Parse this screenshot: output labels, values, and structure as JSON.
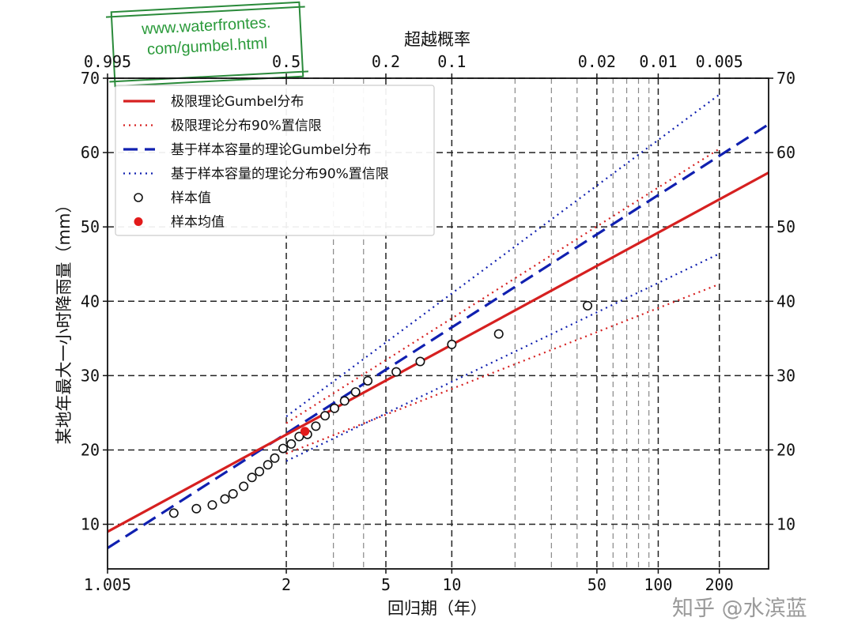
{
  "watermark": {
    "line1": "www.waterfrontes.",
    "line2": "com/gumbel.html"
  },
  "credit": "知乎 @水滨蓝",
  "colors": {
    "gumbel_theory": "#d62020",
    "sample_theory": "#1020b0",
    "grid": "#222222",
    "minor_grid": "#888888",
    "sample_point_edge": "#111111",
    "mean_point": "#e21a1a"
  },
  "chart_data": {
    "type": "scatter",
    "xscale": "gumbel",
    "xlabel": "回归期（年）",
    "ylabel": "某地年最大一小时降雨量（mm）",
    "top_xlabel": "超越概率",
    "ylim": [
      4,
      70
    ],
    "xlim": [
      1.005,
      350
    ],
    "grid": true,
    "legend_position": "top-left",
    "x_ticks": [
      {
        "value": 1.005,
        "label": "1.005"
      },
      {
        "value": 2,
        "label": "2"
      },
      {
        "value": 5,
        "label": "5"
      },
      {
        "value": 10,
        "label": "10"
      },
      {
        "value": 50,
        "label": "50"
      },
      {
        "value": 100,
        "label": "100"
      },
      {
        "value": 200,
        "label": "200"
      }
    ],
    "x_minor": [
      3,
      4,
      20,
      30,
      40,
      60,
      70,
      80,
      90
    ],
    "top_ticks": [
      {
        "value": 1.005,
        "label": "0.995"
      },
      {
        "value": 2,
        "label": "0.5"
      },
      {
        "value": 5,
        "label": "0.2"
      },
      {
        "value": 10,
        "label": "0.1"
      },
      {
        "value": 50,
        "label": "0.02"
      },
      {
        "value": 100,
        "label": "0.01"
      },
      {
        "value": 200,
        "label": "0.005"
      }
    ],
    "y_ticks_left": [
      10,
      20,
      30,
      40,
      50,
      60,
      70
    ],
    "y_ticks_right": [
      10,
      20,
      30,
      40,
      50,
      60,
      70
    ],
    "y_gridlines": [
      10,
      20,
      30,
      40,
      50,
      60,
      70
    ],
    "series": [
      {
        "name": "极限理论Gumbel分布",
        "style": "solid",
        "color": "#d62020",
        "points": [
          [
            1.005,
            9.0
          ],
          [
            350,
            57.3
          ]
        ]
      },
      {
        "name": "极限理论分布90%置信限",
        "style": "dotted",
        "color": "#d62020",
        "upper": [
          [
            2,
            23.6
          ],
          [
            200,
            60.5
          ]
        ],
        "lower": [
          [
            2,
            19.5
          ],
          [
            200,
            42.3
          ]
        ]
      },
      {
        "name": "基于样本容量的理论Gumbel分布",
        "style": "dashed",
        "color": "#1020b0",
        "points": [
          [
            1.005,
            6.8
          ],
          [
            350,
            63.8
          ]
        ]
      },
      {
        "name": "基于样本容量的理论分布90%置信限",
        "style": "dotted",
        "color": "#1020b0",
        "upper": [
          [
            2,
            24.5
          ],
          [
            200,
            67.8
          ]
        ],
        "lower": [
          [
            2,
            18.5
          ],
          [
            200,
            46.4
          ]
        ]
      },
      {
        "name": "样本值",
        "style": "marker-open",
        "points": [
          [
            1.09,
            11.5
          ],
          [
            1.17,
            12.1
          ],
          [
            1.25,
            12.6
          ],
          [
            1.33,
            13.4
          ],
          [
            1.39,
            14.1
          ],
          [
            1.48,
            15.1
          ],
          [
            1.56,
            16.3
          ],
          [
            1.64,
            17.1
          ],
          [
            1.74,
            18.0
          ],
          [
            1.83,
            18.9
          ],
          [
            1.95,
            20.2
          ],
          [
            2.08,
            20.8
          ],
          [
            2.22,
            21.8
          ],
          [
            2.38,
            22.1
          ],
          [
            2.56,
            23.2
          ],
          [
            2.78,
            24.6
          ],
          [
            3.03,
            25.6
          ],
          [
            3.33,
            26.6
          ],
          [
            3.7,
            27.8
          ],
          [
            4.17,
            29.3
          ],
          [
            5.56,
            30.5
          ],
          [
            7.14,
            31.9
          ],
          [
            10.0,
            34.2
          ],
          [
            16.7,
            35.6
          ],
          [
            45.0,
            39.4
          ]
        ]
      },
      {
        "name": "样本均值",
        "style": "marker-filled",
        "points": [
          [
            2.33,
            22.5
          ]
        ]
      }
    ]
  }
}
